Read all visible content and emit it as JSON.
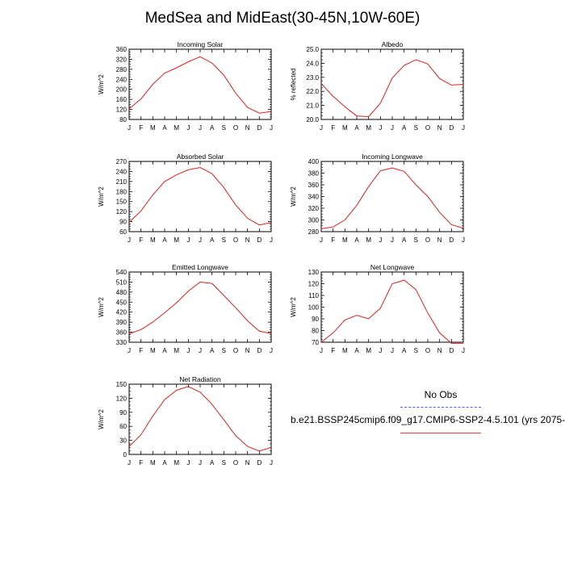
{
  "title": "MedSea and MidEast(30-45N,10W-60E)",
  "legend": {
    "header": "No Obs",
    "case_label": "b.e21.BSSP245cmip6.f09_g17.CMIP6-SSP2-4.5.101 (yrs 2075-"
  },
  "colors": {
    "model": "#e02020",
    "obs": "#5b5bff"
  },
  "chart_data": [
    {
      "type": "line",
      "title": "Incoming Solar",
      "ylabel": "W/m^2",
      "categories": [
        "J",
        "F",
        "M",
        "A",
        "M",
        "J",
        "J",
        "A",
        "S",
        "O",
        "N",
        "D",
        "J"
      ],
      "ylim": [
        80,
        360
      ],
      "yticks": [
        80,
        120,
        160,
        200,
        240,
        280,
        320,
        360
      ],
      "values": [
        122,
        162,
        220,
        265,
        286,
        310,
        330,
        305,
        257,
        185,
        128,
        105,
        112
      ]
    },
    {
      "type": "line",
      "title": "Albedo",
      "ylabel": "% reflected",
      "categories": [
        "J",
        "F",
        "M",
        "A",
        "M",
        "J",
        "J",
        "A",
        "S",
        "O",
        "N",
        "D",
        "J"
      ],
      "ylim": [
        20.0,
        25.0
      ],
      "yticks": [
        "20.0",
        "21.0",
        "22.0",
        "23.0",
        "24.0",
        "25.0"
      ],
      "values": [
        22.55,
        21.65,
        20.9,
        20.25,
        20.2,
        21.15,
        22.95,
        23.85,
        24.25,
        23.95,
        22.9,
        22.45,
        22.5
      ]
    },
    {
      "type": "line",
      "title": "Absorbed Solar",
      "ylabel": "W/m^2",
      "categories": [
        "J",
        "F",
        "M",
        "A",
        "M",
        "J",
        "J",
        "A",
        "S",
        "O",
        "N",
        "D",
        "J"
      ],
      "ylim": [
        60,
        270
      ],
      "yticks": [
        60,
        90,
        120,
        150,
        180,
        210,
        240,
        270
      ],
      "values": [
        88,
        122,
        170,
        210,
        230,
        245,
        252,
        233,
        192,
        140,
        100,
        80,
        87
      ]
    },
    {
      "type": "line",
      "title": "Incoming Longwave",
      "ylabel": "W/m^2",
      "categories": [
        "J",
        "F",
        "M",
        "A",
        "M",
        "J",
        "J",
        "A",
        "S",
        "O",
        "N",
        "D",
        "J"
      ],
      "ylim": [
        280,
        400
      ],
      "yticks": [
        280,
        300,
        320,
        340,
        360,
        380,
        400
      ],
      "values": [
        285,
        288,
        300,
        325,
        357,
        384,
        389,
        383,
        360,
        340,
        313,
        292,
        286
      ]
    },
    {
      "type": "line",
      "title": "Emitted Longwave",
      "ylabel": "W/m^2",
      "categories": [
        "J",
        "F",
        "M",
        "A",
        "M",
        "J",
        "J",
        "A",
        "S",
        "O",
        "N",
        "D",
        "J"
      ],
      "ylim": [
        330,
        540
      ],
      "yticks": [
        330,
        360,
        390,
        420,
        450,
        480,
        510,
        540
      ],
      "values": [
        355,
        368,
        390,
        418,
        448,
        483,
        510,
        506,
        470,
        433,
        394,
        363,
        356
      ]
    },
    {
      "type": "line",
      "title": "Net Longwave",
      "ylabel": "W/m^2",
      "categories": [
        "J",
        "F",
        "M",
        "A",
        "M",
        "J",
        "J",
        "A",
        "S",
        "O",
        "N",
        "D",
        "J"
      ],
      "ylim": [
        70,
        130
      ],
      "yticks": [
        70,
        80,
        90,
        100,
        110,
        120,
        130
      ],
      "values": [
        70,
        78,
        89,
        93,
        90,
        99,
        120,
        123,
        115,
        95,
        78,
        69,
        69
      ]
    },
    {
      "type": "line",
      "title": "Net Radiation",
      "ylabel": "W/m^2",
      "categories": [
        "J",
        "F",
        "M",
        "A",
        "M",
        "J",
        "J",
        "A",
        "S",
        "O",
        "N",
        "D",
        "J"
      ],
      "ylim": [
        0,
        150
      ],
      "yticks": [
        0,
        30,
        60,
        90,
        120,
        150
      ],
      "values": [
        17,
        42,
        82,
        117,
        137,
        145,
        133,
        107,
        74,
        40,
        17,
        7,
        15
      ]
    }
  ]
}
